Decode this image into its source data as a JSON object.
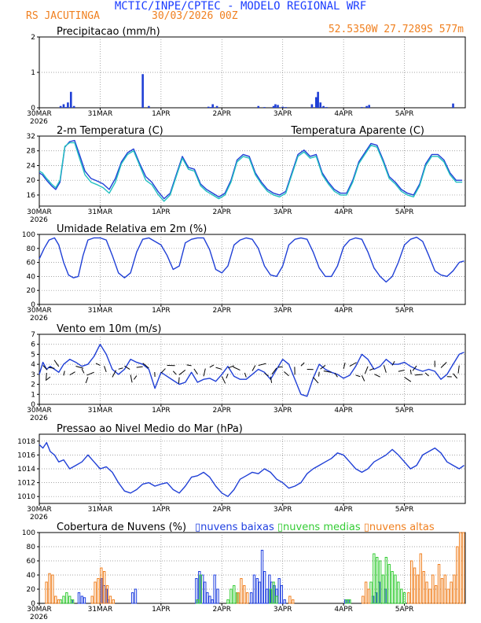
{
  "header": {
    "title": "MCTIC/INPE/CPTEC - MODELO REGIONAL WRF",
    "location": "RS JACUTINGA",
    "run": "30/03/2026 00Z",
    "coords": "52.5350W 27.7289S 577m"
  },
  "colors": {
    "title": "#1a3cff",
    "orange": "#f08020",
    "line": "#1f3fd6",
    "aparente": "#22c0c0",
    "baixas": "#2040e0",
    "medias": "#33cc33",
    "altas": "#f08020",
    "grid": "#888888"
  },
  "axis": {
    "days": [
      "30MAR",
      "31MAR",
      "1APR",
      "2APR",
      "3APR",
      "4APR",
      "5APR"
    ],
    "year": "2026"
  },
  "chart_data": [
    {
      "id": "precip",
      "type": "bar",
      "title": "Precipitacao (mm/h)",
      "ylim": [
        0,
        2
      ],
      "yticks": [
        "0",
        "1",
        "2"
      ],
      "x_days": [
        1.35,
        1.4,
        1.44,
        1.47,
        1.52,
        1.57,
        2.7,
        2.8,
        3.78,
        3.82,
        3.85,
        3.92,
        4.6,
        4.7,
        4.85,
        4.88,
        4.92,
        5.0,
        5.05,
        5.48,
        5.55,
        5.58,
        5.62,
        5.67,
        5.72,
        6.3,
        6.38,
        6.42,
        7.8
      ],
      "values": [
        0.05,
        0.1,
        0.02,
        0.15,
        0.45,
        0.05,
        0.95,
        0.05,
        0.03,
        0.02,
        0.1,
        0.05,
        0.05,
        0.02,
        0.05,
        0.1,
        0.08,
        0.03,
        0.02,
        0.1,
        0.3,
        0.45,
        0.15,
        0.05,
        0.02,
        0.02,
        0.05,
        0.08,
        0.12
      ]
    },
    {
      "id": "temp",
      "type": "line",
      "title": "2-m Temperatura (C)",
      "legend": "Temperatura Aparente (C)",
      "ylim": [
        13,
        32
      ],
      "yticks": [
        "16",
        "20",
        "24",
        "28",
        "32"
      ],
      "series": [
        {
          "name": "Temperatura",
          "x_days": [
            1.0,
            1.05,
            1.12,
            1.2,
            1.27,
            1.34,
            1.42,
            1.5,
            1.58,
            1.66,
            1.75,
            1.85,
            1.95,
            2.05,
            2.15,
            2.25,
            2.35,
            2.45,
            2.55,
            2.65,
            2.75,
            2.85,
            2.95,
            3.05,
            3.15,
            3.25,
            3.35,
            3.45,
            3.55,
            3.65,
            3.75,
            3.85,
            3.95,
            4.05,
            4.15,
            4.25,
            4.35,
            4.45,
            4.55,
            4.65,
            4.75,
            4.85,
            4.95,
            5.05,
            5.15,
            5.25,
            5.35,
            5.45,
            5.55,
            5.65,
            5.75,
            5.85,
            5.95,
            6.05,
            6.15,
            6.25,
            6.35,
            6.45,
            6.55,
            6.65,
            6.75,
            6.85,
            6.95,
            7.05,
            7.15,
            7.25,
            7.35,
            7.45,
            7.55,
            7.65,
            7.75,
            7.85,
            7.95
          ],
          "values": [
            22,
            21.5,
            20,
            18.5,
            17.5,
            19.5,
            29,
            30.5,
            30.8,
            27,
            22.5,
            20.5,
            19.8,
            19,
            17.5,
            20.5,
            25,
            27.5,
            28.5,
            24.5,
            21,
            19.5,
            17,
            15,
            16.5,
            21.5,
            26.5,
            23.5,
            23,
            19,
            17.5,
            16.5,
            15.5,
            16.5,
            20,
            25.5,
            27,
            26.5,
            22,
            19.5,
            17.5,
            16.5,
            16,
            17,
            22,
            27,
            28.2,
            26.5,
            27,
            22,
            19.5,
            17.5,
            16.5,
            16.5,
            20,
            25,
            27.5,
            30,
            29.5,
            25.5,
            21,
            19.5,
            17.5,
            16.5,
            16,
            19,
            24.5,
            27,
            27,
            25.5,
            22,
            20,
            20
          ]
        },
        {
          "name": "Temperatura Aparente",
          "x_days": [
            1.0,
            1.05,
            1.12,
            1.2,
            1.27,
            1.34,
            1.42,
            1.5,
            1.58,
            1.66,
            1.75,
            1.85,
            1.95,
            2.05,
            2.15,
            2.25,
            2.35,
            2.45,
            2.55,
            2.65,
            2.75,
            2.85,
            2.95,
            3.05,
            3.15,
            3.25,
            3.35,
            3.45,
            3.55,
            3.65,
            3.75,
            3.85,
            3.95,
            4.05,
            4.15,
            4.25,
            4.35,
            4.45,
            4.55,
            4.65,
            4.75,
            4.85,
            4.95,
            5.05,
            5.15,
            5.25,
            5.35,
            5.45,
            5.55,
            5.65,
            5.75,
            5.85,
            5.95,
            6.05,
            6.15,
            6.25,
            6.35,
            6.45,
            6.55,
            6.65,
            6.75,
            6.85,
            6.95,
            7.05,
            7.15,
            7.25,
            7.35,
            7.45,
            7.55,
            7.65,
            7.75,
            7.85,
            7.95
          ],
          "values": [
            22.5,
            22,
            20.5,
            19,
            18,
            20,
            29.2,
            30.2,
            30.2,
            26,
            21.5,
            19.5,
            18.8,
            18,
            16.5,
            19.5,
            24.5,
            27,
            28,
            24,
            20,
            18.8,
            16.2,
            14.3,
            16,
            21,
            26,
            23,
            22.5,
            18.5,
            17,
            16,
            15,
            16,
            19.5,
            25,
            26.5,
            26,
            21.5,
            19,
            17,
            16,
            15.5,
            16.5,
            21.5,
            26.5,
            27.7,
            26,
            26.5,
            21.5,
            19,
            17,
            16,
            16,
            19.5,
            24.5,
            27,
            29.5,
            29,
            25,
            20.5,
            19,
            17,
            16,
            15.5,
            18.5,
            24,
            26.5,
            26.5,
            25,
            21.5,
            19.5,
            19.5
          ]
        }
      ]
    },
    {
      "id": "umid",
      "type": "line",
      "title": "Umidade Relativa em 2m (%)",
      "ylim": [
        0,
        100
      ],
      "yticks": [
        "0",
        "20",
        "40",
        "60",
        "80",
        "100"
      ],
      "series": [
        {
          "name": "Umidade",
          "x_days": [
            1.0,
            1.08,
            1.16,
            1.25,
            1.32,
            1.4,
            1.48,
            1.56,
            1.64,
            1.72,
            1.8,
            1.9,
            2.0,
            2.1,
            2.2,
            2.3,
            2.4,
            2.5,
            2.6,
            2.7,
            2.8,
            2.9,
            3.0,
            3.1,
            3.2,
            3.3,
            3.4,
            3.5,
            3.6,
            3.7,
            3.8,
            3.9,
            4.0,
            4.1,
            4.2,
            4.3,
            4.4,
            4.5,
            4.6,
            4.7,
            4.8,
            4.9,
            5.0,
            5.1,
            5.2,
            5.3,
            5.4,
            5.5,
            5.6,
            5.7,
            5.8,
            5.9,
            6.0,
            6.1,
            6.2,
            6.3,
            6.4,
            6.5,
            6.6,
            6.7,
            6.8,
            6.9,
            7.0,
            7.1,
            7.2,
            7.3,
            7.4,
            7.5,
            7.6,
            7.7,
            7.8,
            7.9,
            7.98
          ],
          "values": [
            65,
            80,
            92,
            95,
            85,
            60,
            42,
            38,
            40,
            70,
            92,
            95,
            95,
            92,
            70,
            45,
            38,
            45,
            75,
            93,
            95,
            90,
            85,
            70,
            50,
            55,
            88,
            93,
            95,
            95,
            78,
            50,
            45,
            55,
            85,
            92,
            95,
            93,
            80,
            55,
            42,
            40,
            55,
            85,
            93,
            95,
            93,
            75,
            52,
            40,
            40,
            55,
            82,
            92,
            95,
            93,
            75,
            52,
            40,
            32,
            40,
            60,
            85,
            93,
            96,
            90,
            70,
            48,
            42,
            40,
            48,
            60,
            62
          ]
        }
      ]
    },
    {
      "id": "vento",
      "type": "line",
      "title": "Vento em 10m (m/s)",
      "ylim": [
        0,
        7
      ],
      "yticks": [
        "0",
        "1",
        "2",
        "3",
        "4",
        "5",
        "6",
        "7"
      ],
      "series": [
        {
          "name": "Vento",
          "x_days": [
            1.0,
            1.06,
            1.12,
            1.18,
            1.25,
            1.32,
            1.4,
            1.5,
            1.6,
            1.7,
            1.8,
            1.9,
            2.0,
            2.1,
            2.2,
            2.3,
            2.4,
            2.5,
            2.6,
            2.7,
            2.8,
            2.9,
            3.0,
            3.1,
            3.2,
            3.3,
            3.4,
            3.5,
            3.6,
            3.7,
            3.8,
            3.9,
            4.0,
            4.1,
            4.2,
            4.3,
            4.4,
            4.5,
            4.6,
            4.7,
            4.8,
            4.9,
            5.0,
            5.1,
            5.2,
            5.3,
            5.4,
            5.5,
            5.6,
            5.7,
            5.8,
            5.9,
            6.0,
            6.1,
            6.2,
            6.3,
            6.4,
            6.5,
            6.6,
            6.7,
            6.8,
            6.9,
            7.0,
            7.1,
            7.2,
            7.3,
            7.4,
            7.5,
            7.6,
            7.7,
            7.8,
            7.9,
            7.98
          ],
          "values": [
            3.0,
            4.2,
            3.5,
            3.8,
            3.5,
            3.2,
            4.0,
            4.5,
            4.2,
            3.8,
            4.0,
            4.8,
            6.0,
            5.0,
            3.5,
            3.0,
            3.5,
            4.5,
            4.2,
            4.0,
            3.5,
            1.6,
            3.2,
            2.8,
            2.4,
            2.0,
            2.2,
            3.2,
            2.2,
            2.5,
            2.6,
            2.3,
            3.0,
            3.8,
            2.8,
            2.5,
            2.5,
            3.0,
            3.5,
            3.2,
            2.5,
            3.5,
            4.5,
            4.0,
            2.5,
            1.0,
            0.8,
            2.6,
            4.0,
            3.5,
            3.2,
            3.0,
            2.6,
            2.9,
            3.8,
            5.0,
            4.5,
            3.5,
            3.8,
            4.5,
            4.0,
            4.0,
            4.2,
            3.8,
            3.5,
            3.3,
            3.5,
            3.3,
            2.5,
            3.0,
            4.0,
            5.0,
            5.2
          ]
        }
      ]
    },
    {
      "id": "pressao",
      "type": "line",
      "title": "Pressao ao Nivel Medio do Mar (hPa)",
      "ylim": [
        1009,
        1019
      ],
      "yticks": [
        "1010",
        "1012",
        "1014",
        "1016",
        "1018"
      ],
      "series": [
        {
          "name": "Pressao",
          "x_days": [
            1.0,
            1.06,
            1.12,
            1.18,
            1.25,
            1.32,
            1.4,
            1.5,
            1.6,
            1.7,
            1.8,
            1.9,
            2.0,
            2.1,
            2.2,
            2.3,
            2.4,
            2.5,
            2.6,
            2.7,
            2.8,
            2.9,
            3.0,
            3.1,
            3.2,
            3.3,
            3.4,
            3.5,
            3.6,
            3.7,
            3.8,
            3.9,
            4.0,
            4.1,
            4.2,
            4.3,
            4.4,
            4.5,
            4.6,
            4.7,
            4.8,
            4.9,
            5.0,
            5.1,
            5.2,
            5.3,
            5.4,
            5.5,
            5.6,
            5.7,
            5.8,
            5.9,
            6.0,
            6.1,
            6.2,
            6.3,
            6.4,
            6.5,
            6.6,
            6.7,
            6.8,
            6.9,
            7.0,
            7.1,
            7.2,
            7.3,
            7.4,
            7.5,
            7.6,
            7.7,
            7.8,
            7.9,
            7.98
          ],
          "values": [
            1017.5,
            1017.0,
            1017.8,
            1016.5,
            1016.0,
            1015.0,
            1015.3,
            1014.0,
            1014.5,
            1015.0,
            1016.0,
            1015.0,
            1014.0,
            1014.3,
            1013.5,
            1012.0,
            1010.8,
            1010.5,
            1011.0,
            1011.8,
            1012.0,
            1011.5,
            1011.8,
            1012.0,
            1011.0,
            1010.5,
            1011.5,
            1012.8,
            1013.0,
            1013.5,
            1012.8,
            1011.5,
            1010.5,
            1010.0,
            1011.0,
            1012.5,
            1013.0,
            1013.5,
            1013.3,
            1014.0,
            1013.5,
            1012.5,
            1012.0,
            1011.2,
            1011.5,
            1012.0,
            1013.3,
            1014.0,
            1014.5,
            1015.0,
            1015.5,
            1016.3,
            1016.0,
            1015.0,
            1014.0,
            1013.5,
            1014.0,
            1015.0,
            1015.5,
            1016.0,
            1016.8,
            1016.0,
            1015.0,
            1014.0,
            1014.5,
            1016.0,
            1016.5,
            1017.0,
            1016.3,
            1015.0,
            1014.5,
            1014.0,
            1014.5
          ]
        }
      ]
    },
    {
      "id": "nuvens",
      "type": "bar",
      "title": "Cobertura de Nuvens (%)",
      "legend": [
        "nuvens baixas",
        "nuvens medias",
        "nuvens altas"
      ],
      "ylim": [
        0,
        100
      ],
      "yticks": [
        "0",
        "20",
        "40",
        "60",
        "80",
        "100"
      ],
      "baixas": {
        "x_days": [
          1.55,
          1.67,
          1.72,
          1.76,
          2.05,
          2.08,
          2.12,
          2.15,
          2.55,
          2.6,
          3.6,
          3.65,
          3.7,
          3.74,
          3.78,
          3.82,
          3.86,
          3.9,
          3.95,
          4.5,
          4.55,
          4.6,
          4.64,
          4.68,
          4.72,
          4.76,
          4.8,
          4.84,
          4.88,
          4.92,
          4.96,
          5.0,
          5.05,
          6.05,
          6.1,
          6.5,
          6.55,
          6.6,
          6.7
        ],
        "values": [
          5,
          15,
          10,
          8,
          35,
          25,
          20,
          5,
          15,
          20,
          35,
          45,
          40,
          30,
          15,
          10,
          5,
          40,
          20,
          15,
          40,
          35,
          30,
          75,
          45,
          20,
          40,
          30,
          25,
          20,
          35,
          25,
          5,
          5,
          5,
          10,
          15,
          30,
          20
        ]
      },
      "medias": {
        "x_days": [
          1.35,
          1.4,
          1.45,
          1.5,
          1.55,
          3.6,
          3.65,
          4.1,
          4.15,
          4.2,
          4.25,
          4.8,
          4.85,
          4.9,
          6.05,
          6.1,
          6.45,
          6.5,
          6.55,
          6.6,
          6.65,
          6.7,
          6.75,
          6.8,
          6.85,
          6.9,
          6.95,
          7.0
        ],
        "values": [
          5,
          10,
          15,
          10,
          5,
          5,
          40,
          5,
          20,
          25,
          15,
          20,
          30,
          10,
          5,
          5,
          30,
          70,
          65,
          60,
          40,
          65,
          55,
          45,
          40,
          30,
          20,
          15
        ]
      },
      "altas": {
        "x_days": [
          1.1,
          1.15,
          1.2,
          1.25,
          1.3,
          1.85,
          1.9,
          1.95,
          2.0,
          2.05,
          2.1,
          2.15,
          2.2,
          4.25,
          4.3,
          4.35,
          4.4,
          5.1,
          5.15,
          6.3,
          6.35,
          6.4,
          7.05,
          7.1,
          7.15,
          7.2,
          7.25,
          7.3,
          7.35,
          7.4,
          7.45,
          7.5,
          7.55,
          7.6,
          7.65,
          7.7,
          7.75,
          7.8,
          7.85,
          7.9,
          7.95
        ],
        "values": [
          30,
          42,
          40,
          10,
          5,
          10,
          30,
          35,
          50,
          45,
          25,
          10,
          5,
          15,
          35,
          25,
          15,
          10,
          5,
          10,
          30,
          20,
          15,
          60,
          50,
          40,
          70,
          45,
          30,
          20,
          40,
          25,
          55,
          35,
          40,
          20,
          30,
          40,
          80,
          100,
          100
        ]
      }
    }
  ]
}
